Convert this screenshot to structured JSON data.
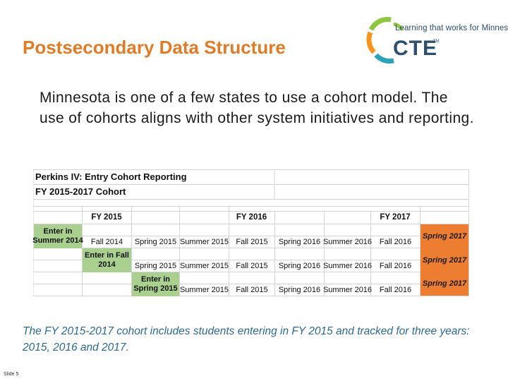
{
  "slide": {
    "title": "Postsecondary Data Structure",
    "logo": {
      "tagline": "Learning that works for Minnesota",
      "wordmark": "CTE",
      "trademark": "TM",
      "colors": {
        "green": "#8dc63f",
        "orange": "#f7941d",
        "teal": "#2aa3b8",
        "navy": "#2b4f6e"
      }
    },
    "intro": "Minnesota is one of a few states to use a cohort model. The use of cohorts aligns with other system initiatives and reporting.",
    "table": {
      "title_line1": "Perkins IV: Entry Cohort Reporting",
      "title_line2": "FY 2015-2017 Cohort",
      "fiscal_years": [
        "FY 2015",
        "FY 2016",
        "FY 2017"
      ],
      "rows": [
        {
          "entry_line1": "Enter in",
          "entry_line2": "Summer 2014",
          "terms": [
            "Fall 2014",
            "Spring 2015",
            "Summer 2015",
            "Fall 2015",
            "Spring 2016",
            "Summer 2016",
            "Fall 2016",
            "Spring 2017"
          ]
        },
        {
          "entry_line1": "Enter in Fall",
          "entry_line2": "2014",
          "terms": [
            "Spring 2015",
            "Summer 2015",
            "Fall 2015",
            "Spring 2016",
            "Summer 2016",
            "Fall 2016",
            "Spring 2017"
          ]
        },
        {
          "entry_line1": "Enter in",
          "entry_line2": "Spring 2015",
          "terms": [
            "Summer 2015",
            "Fall 2015",
            "Spring 2016",
            "Summer 2016",
            "Fall 2016",
            "Spring 2017"
          ]
        }
      ],
      "colors": {
        "entry": "#a9d08e",
        "final_term": "#ed7d31",
        "grid": "#d4d4d4"
      }
    },
    "caption": "The FY 2015-2017 cohort includes students entering in FY 2015 and tracked for three years: 2015, 2016 and 2017.",
    "slide_number": "Slide 5"
  }
}
